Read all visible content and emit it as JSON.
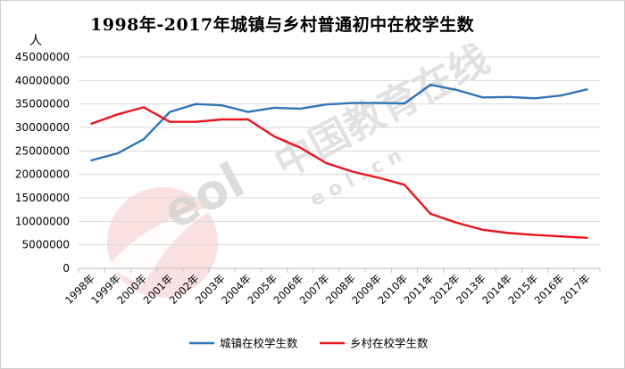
{
  "chart_data": {
    "type": "line",
    "title": "1998年-2017年城镇与乡村普通初中在校学生数",
    "ylabel": "人",
    "xlabel": "",
    "categories": [
      "1998年",
      "1999年",
      "2000年",
      "2001年",
      "2002年",
      "2003年",
      "2004年",
      "2005年",
      "2006年",
      "2007年",
      "2008年",
      "2009年",
      "2010年",
      "2011年",
      "2012年",
      "2013年",
      "2014年",
      "2015年",
      "2016年",
      "2017年"
    ],
    "series": [
      {
        "name": "城镇在校学生数",
        "color": "#2E75B6",
        "values": [
          23000000,
          24500000,
          27500000,
          33300000,
          35000000,
          34700000,
          33300000,
          34200000,
          34000000,
          34900000,
          35200000,
          35200000,
          35100000,
          39100000,
          38000000,
          36400000,
          36500000,
          36200000,
          36800000,
          38100000
        ]
      },
      {
        "name": "乡村在校学生数",
        "color": "#E8151B",
        "values": [
          30800000,
          32800000,
          34300000,
          31200000,
          31200000,
          31700000,
          31700000,
          28100000,
          25700000,
          22400000,
          20600000,
          19300000,
          17800000,
          11600000,
          9700000,
          8200000,
          7500000,
          7100000,
          6800000,
          6500000
        ]
      }
    ],
    "ylim": [
      0,
      45000000
    ],
    "yticks": [
      "0",
      "5000000",
      "10000000",
      "15000000",
      "20000000",
      "25000000",
      "30000000",
      "35000000",
      "40000000",
      "45000000"
    ],
    "grid": true,
    "legend_position": "bottom"
  },
  "watermark": {
    "text": "中国教育在线",
    "subtext": "e o l . c n",
    "logo_text": "eol"
  }
}
